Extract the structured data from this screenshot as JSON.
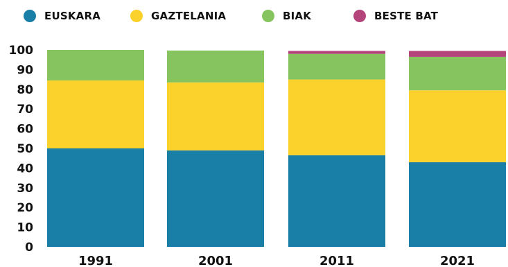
{
  "chart_data": {
    "type": "bar",
    "stacked": true,
    "title": "",
    "xlabel": "",
    "ylabel": "",
    "ylim": [
      0,
      100
    ],
    "yticks": [
      0,
      10,
      20,
      30,
      40,
      50,
      60,
      70,
      80,
      90,
      100
    ],
    "grid": false,
    "legend_position": "top",
    "categories": [
      "1991",
      "2001",
      "2011",
      "2021"
    ],
    "series": [
      {
        "name": "EUSKARA",
        "color": "#1a7fa6",
        "values": [
          50,
          49,
          46.5,
          43
        ]
      },
      {
        "name": "GAZTELANIA",
        "color": "#fbd22c",
        "values": [
          34.5,
          34.5,
          38.5,
          36.5
        ]
      },
      {
        "name": "BIAK",
        "color": "#86c45f",
        "values": [
          15.5,
          16.2,
          13,
          17
        ]
      },
      {
        "name": "BESTE BAT",
        "color": "#b4457a",
        "values": [
          0,
          0,
          1.5,
          3
        ]
      }
    ]
  }
}
